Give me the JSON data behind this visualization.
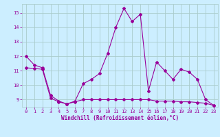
{
  "x": [
    0,
    1,
    2,
    3,
    4,
    5,
    6,
    7,
    8,
    9,
    10,
    11,
    12,
    13,
    14,
    15,
    16,
    17,
    18,
    19,
    20,
    21,
    22,
    23
  ],
  "line1": [
    12.0,
    11.4,
    11.2,
    9.3,
    8.9,
    8.7,
    8.9,
    10.1,
    10.4,
    10.8,
    12.2,
    14.0,
    15.3,
    14.4,
    14.9,
    9.6,
    11.6,
    11.0,
    10.4,
    11.1,
    10.9,
    10.4,
    9.0,
    8.6
  ],
  "line2": [
    11.2,
    11.15,
    11.1,
    9.1,
    8.85,
    8.7,
    8.85,
    9.0,
    9.0,
    9.0,
    9.0,
    9.0,
    9.0,
    9.0,
    9.0,
    9.0,
    8.9,
    8.9,
    8.9,
    8.85,
    8.85,
    8.8,
    8.75,
    8.6
  ],
  "line_color": "#990099",
  "bg_color": "#cceeff",
  "grid_color": "#aacccc",
  "xlabel": "Windchill (Refroidissement éolien,°C)",
  "ylim_min": 8.5,
  "ylim_max": 15.6,
  "xlim_min": -0.5,
  "xlim_max": 23.5,
  "yticks": [
    9,
    10,
    11,
    12,
    13,
    14,
    15
  ],
  "xticks": [
    0,
    1,
    2,
    3,
    4,
    5,
    6,
    7,
    8,
    9,
    10,
    11,
    12,
    13,
    14,
    15,
    16,
    17,
    18,
    19,
    20,
    21,
    22,
    23
  ]
}
